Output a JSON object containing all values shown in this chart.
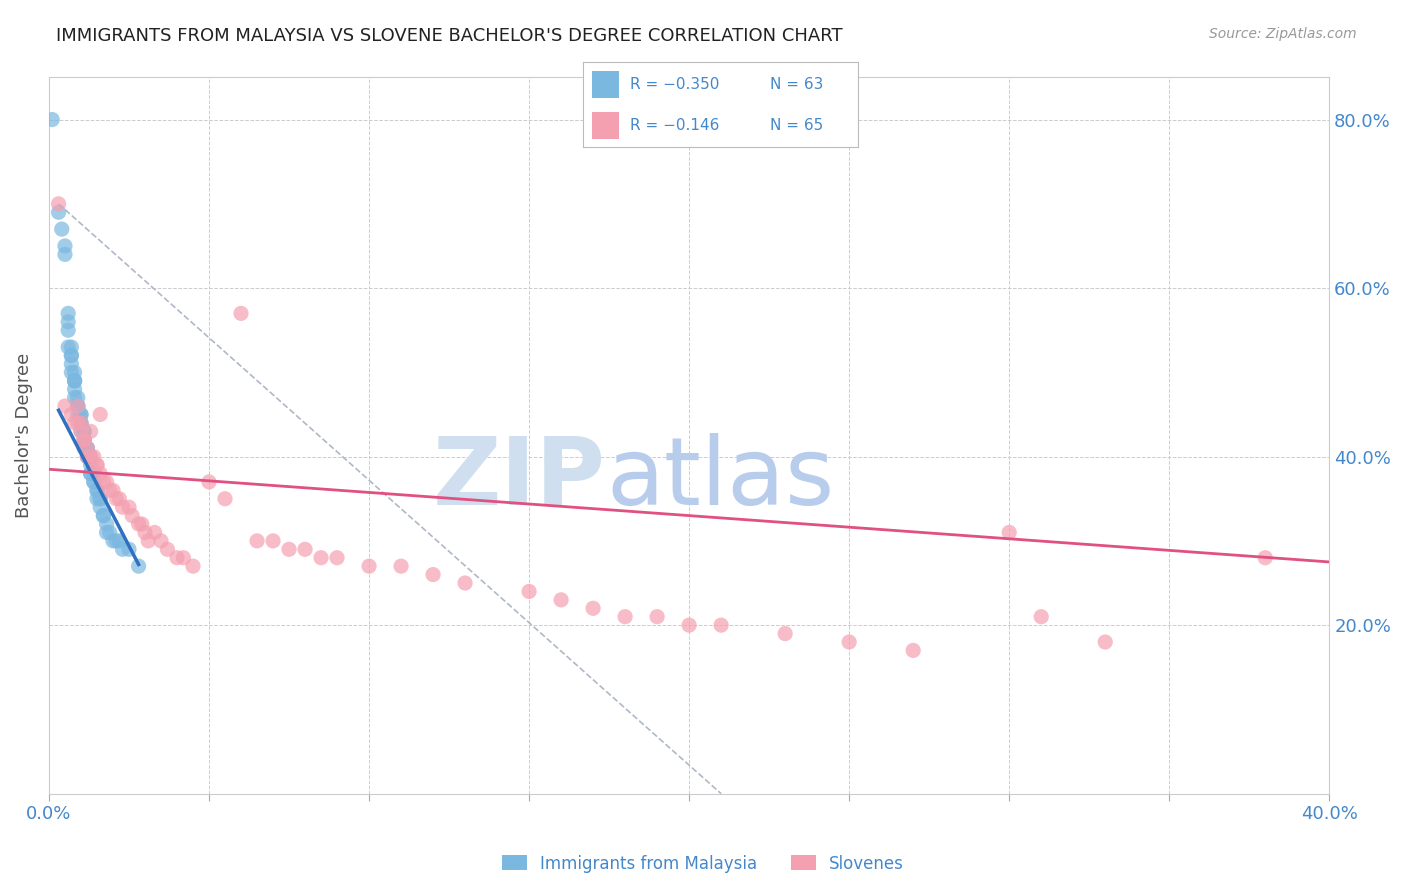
{
  "title": "IMMIGRANTS FROM MALAYSIA VS SLOVENE BACHELOR'S DEGREE CORRELATION CHART",
  "source": "Source: ZipAtlas.com",
  "ylabel_label": "Bachelor's Degree",
  "xlim": [
    0.0,
    0.4
  ],
  "ylim": [
    0.0,
    0.85
  ],
  "yticks": [
    0.2,
    0.4,
    0.6,
    0.8
  ],
  "ytick_labels": [
    "20.0%",
    "40.0%",
    "60.0%",
    "80.0%"
  ],
  "xtick_left_label": "0.0%",
  "xtick_right_label": "40.0%",
  "legend_r1": "R = −0.350",
  "legend_n1": "N = 63",
  "legend_r2": "R = −0.146",
  "legend_n2": "N = 65",
  "color_blue": "#7ab8e0",
  "color_pink": "#f4a0b0",
  "color_blue_line": "#3070c0",
  "color_pink_line": "#e05080",
  "color_text_blue": "#4488cc",
  "watermark_zip_color": "#d0dff0",
  "watermark_atlas_color": "#b8ccec",
  "blue_dots_x": [
    0.001,
    0.003,
    0.004,
    0.005,
    0.005,
    0.006,
    0.006,
    0.006,
    0.006,
    0.007,
    0.007,
    0.007,
    0.007,
    0.007,
    0.008,
    0.008,
    0.008,
    0.008,
    0.008,
    0.008,
    0.009,
    0.009,
    0.009,
    0.009,
    0.009,
    0.01,
    0.01,
    0.01,
    0.01,
    0.01,
    0.011,
    0.011,
    0.011,
    0.011,
    0.011,
    0.012,
    0.012,
    0.012,
    0.012,
    0.013,
    0.013,
    0.013,
    0.013,
    0.014,
    0.014,
    0.014,
    0.015,
    0.015,
    0.015,
    0.016,
    0.016,
    0.016,
    0.017,
    0.017,
    0.018,
    0.018,
    0.019,
    0.02,
    0.021,
    0.022,
    0.023,
    0.025,
    0.028
  ],
  "blue_dots_y": [
    0.8,
    0.69,
    0.67,
    0.65,
    0.64,
    0.57,
    0.56,
    0.55,
    0.53,
    0.53,
    0.52,
    0.52,
    0.51,
    0.5,
    0.5,
    0.49,
    0.49,
    0.49,
    0.48,
    0.47,
    0.47,
    0.46,
    0.46,
    0.46,
    0.45,
    0.45,
    0.45,
    0.44,
    0.44,
    0.43,
    0.43,
    0.43,
    0.42,
    0.42,
    0.41,
    0.41,
    0.41,
    0.4,
    0.4,
    0.4,
    0.39,
    0.38,
    0.38,
    0.38,
    0.37,
    0.37,
    0.36,
    0.36,
    0.35,
    0.35,
    0.35,
    0.34,
    0.33,
    0.33,
    0.32,
    0.31,
    0.31,
    0.3,
    0.3,
    0.3,
    0.29,
    0.29,
    0.27
  ],
  "pink_dots_x": [
    0.003,
    0.005,
    0.007,
    0.008,
    0.009,
    0.009,
    0.01,
    0.01,
    0.011,
    0.011,
    0.012,
    0.012,
    0.013,
    0.013,
    0.014,
    0.015,
    0.015,
    0.016,
    0.016,
    0.017,
    0.018,
    0.019,
    0.02,
    0.021,
    0.022,
    0.023,
    0.025,
    0.026,
    0.028,
    0.029,
    0.03,
    0.031,
    0.033,
    0.035,
    0.037,
    0.04,
    0.042,
    0.045,
    0.05,
    0.055,
    0.06,
    0.065,
    0.07,
    0.075,
    0.08,
    0.085,
    0.09,
    0.1,
    0.11,
    0.12,
    0.13,
    0.15,
    0.16,
    0.17,
    0.18,
    0.19,
    0.2,
    0.21,
    0.23,
    0.25,
    0.27,
    0.3,
    0.31,
    0.33,
    0.38
  ],
  "pink_dots_y": [
    0.7,
    0.46,
    0.45,
    0.44,
    0.46,
    0.44,
    0.44,
    0.43,
    0.42,
    0.42,
    0.41,
    0.4,
    0.4,
    0.43,
    0.4,
    0.39,
    0.39,
    0.45,
    0.38,
    0.37,
    0.37,
    0.36,
    0.36,
    0.35,
    0.35,
    0.34,
    0.34,
    0.33,
    0.32,
    0.32,
    0.31,
    0.3,
    0.31,
    0.3,
    0.29,
    0.28,
    0.28,
    0.27,
    0.37,
    0.35,
    0.57,
    0.3,
    0.3,
    0.29,
    0.29,
    0.28,
    0.28,
    0.27,
    0.27,
    0.26,
    0.25,
    0.24,
    0.23,
    0.22,
    0.21,
    0.21,
    0.2,
    0.2,
    0.19,
    0.18,
    0.17,
    0.31,
    0.21,
    0.18,
    0.28
  ],
  "blue_line_x": [
    0.003,
    0.028
  ],
  "blue_line_y": [
    0.455,
    0.272
  ],
  "pink_line_x": [
    0.0,
    0.4
  ],
  "pink_line_y": [
    0.385,
    0.275
  ],
  "gray_line_x": [
    0.003,
    0.21
  ],
  "gray_line_y": [
    0.7,
    0.0
  ]
}
